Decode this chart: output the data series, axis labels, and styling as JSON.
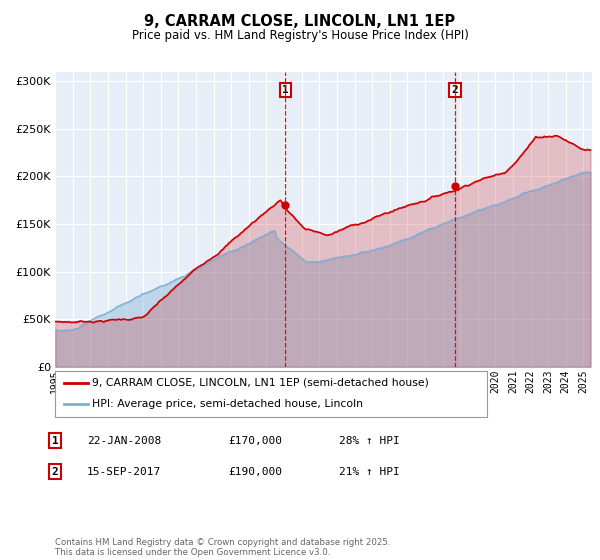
{
  "title": "9, CARRAM CLOSE, LINCOLN, LN1 1EP",
  "subtitle": "Price paid vs. HM Land Registry's House Price Index (HPI)",
  "bg_color": "#ffffff",
  "plot_bg_color": "#e8eef8",
  "red_color": "#cc0000",
  "blue_color": "#7eb0d4",
  "ylim": [
    0,
    310000
  ],
  "yticks": [
    0,
    50000,
    100000,
    150000,
    200000,
    250000,
    300000
  ],
  "ytick_labels": [
    "£0",
    "£50K",
    "£100K",
    "£150K",
    "£200K",
    "£250K",
    "£300K"
  ],
  "xlim_start": 1995.0,
  "xlim_end": 2025.5,
  "xtick_years": [
    1995,
    1996,
    1997,
    1998,
    1999,
    2000,
    2001,
    2002,
    2003,
    2004,
    2005,
    2006,
    2007,
    2008,
    2009,
    2010,
    2011,
    2012,
    2013,
    2014,
    2015,
    2016,
    2017,
    2018,
    2019,
    2020,
    2021,
    2022,
    2023,
    2024,
    2025
  ],
  "marker1_x": 2008.06,
  "marker1_y": 170000,
  "marker1_label": "1",
  "marker2_x": 2017.71,
  "marker2_y": 190000,
  "marker2_label": "2",
  "legend_line1": "9, CARRAM CLOSE, LINCOLN, LN1 1EP (semi-detached house)",
  "legend_line2": "HPI: Average price, semi-detached house, Lincoln",
  "table_row1": [
    "1",
    "22-JAN-2008",
    "£170,000",
    "28% ↑ HPI"
  ],
  "table_row2": [
    "2",
    "15-SEP-2017",
    "£190,000",
    "21% ↑ HPI"
  ],
  "footnote": "Contains HM Land Registry data © Crown copyright and database right 2025.\nThis data is licensed under the Open Government Licence v3.0."
}
